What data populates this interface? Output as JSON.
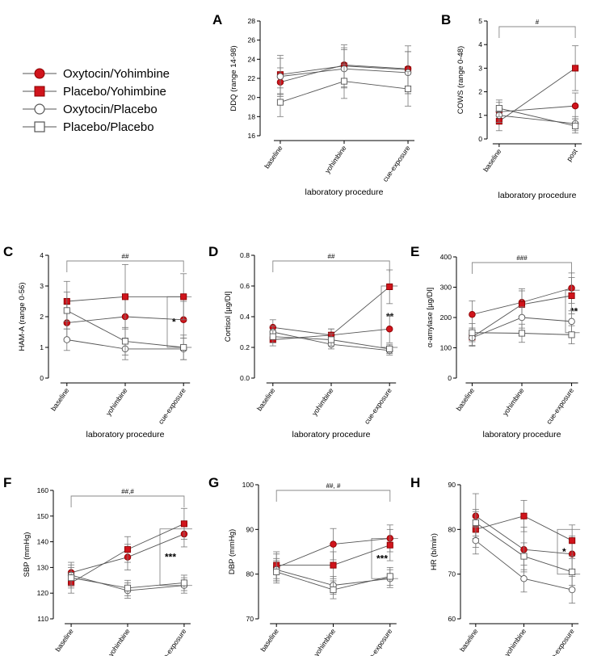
{
  "legend": [
    {
      "label": "Oxytocin/Yohimbine",
      "marker": "circle",
      "filled": true
    },
    {
      "label": "Placebo/Yohimbine",
      "marker": "square",
      "filled": true
    },
    {
      "label": "Oxytocin/Placebo",
      "marker": "circle",
      "filled": false
    },
    {
      "label": "Placebo/Placebo",
      "marker": "square",
      "filled": false
    }
  ],
  "colors": {
    "filled": "#d0141c",
    "open_fill": "#ffffff",
    "open_stroke": "#555555",
    "error": "#777777",
    "axis": "#000000"
  },
  "chart_data": [
    {
      "panel": "A",
      "type": "line",
      "ylabel": "DDQ (range 14-98)",
      "xlabel": "laboratory procedure",
      "categories": [
        "baseline",
        "yohimbine",
        "cue-exposure"
      ],
      "ylim": [
        16,
        28
      ],
      "yticks": [
        16,
        18,
        20,
        22,
        24,
        26,
        28
      ],
      "series": [
        {
          "name": "Oxytocin/Yohimbine",
          "values": [
            21.6,
            23.4,
            23.0
          ],
          "err": [
            1.5,
            1.8,
            1.8
          ]
        },
        {
          "name": "Placebo/Yohimbine",
          "values": [
            22.4,
            23.3,
            22.9
          ],
          "err": [
            2.0,
            2.2,
            2.5
          ]
        },
        {
          "name": "Oxytocin/Placebo",
          "values": [
            22.2,
            23.0,
            22.6
          ],
          "err": [
            1.9,
            2.0,
            2.2
          ]
        },
        {
          "name": "Placebo/Placebo",
          "values": [
            19.5,
            21.7,
            20.9
          ],
          "err": [
            1.5,
            1.8,
            1.8
          ]
        }
      ],
      "bracket": {
        "label": "",
        "from": 0,
        "to": 0
      },
      "stars": ""
    },
    {
      "panel": "B",
      "type": "line",
      "ylabel": "COWS (range 0-48)",
      "xlabel": "laboratory procedure",
      "categories": [
        "baseline",
        "post"
      ],
      "ylim": [
        0,
        5
      ],
      "yticks": [
        0,
        1,
        2,
        3,
        4,
        5
      ],
      "series": [
        {
          "name": "Oxytocin/Yohimbine",
          "values": [
            1.15,
            1.4
          ],
          "err": [
            0.4,
            0.55
          ]
        },
        {
          "name": "Placebo/Yohimbine",
          "values": [
            0.75,
            3.0
          ],
          "err": [
            0.4,
            0.95
          ]
        },
        {
          "name": "Oxytocin/Placebo",
          "values": [
            1.0,
            0.65
          ],
          "err": [
            0.3,
            0.3
          ]
        },
        {
          "name": "Placebo/Placebo",
          "values": [
            1.3,
            0.55
          ],
          "err": [
            0.35,
            0.3
          ]
        }
      ],
      "bracket": {
        "label": "#",
        "from": 0,
        "to": 1
      },
      "stars": ""
    },
    {
      "panel": "C",
      "type": "line",
      "ylabel": "HAM-A (range 0-56)",
      "xlabel": "laboratory procedure",
      "categories": [
        "baseline",
        "yohimbine",
        "cue-exposure"
      ],
      "ylim": [
        0,
        4
      ],
      "yticks": [
        0,
        1,
        2,
        3,
        4
      ],
      "series": [
        {
          "name": "Oxytocin/Yohimbine",
          "values": [
            1.8,
            2.0,
            1.9
          ],
          "err": [
            0.6,
            0.7,
            0.6
          ]
        },
        {
          "name": "Placebo/Yohimbine",
          "values": [
            2.5,
            2.65,
            2.65
          ],
          "err": [
            0.65,
            1.05,
            0.75
          ]
        },
        {
          "name": "Oxytocin/Placebo",
          "values": [
            1.25,
            0.95,
            0.95
          ],
          "err": [
            0.35,
            0.35,
            0.35
          ]
        },
        {
          "name": "Placebo/Placebo",
          "values": [
            2.2,
            1.2,
            1.0
          ],
          "err": [
            0.6,
            0.45,
            0.4
          ]
        }
      ],
      "bracket": {
        "label": "##",
        "from": 0,
        "to": 2
      },
      "stars": "*"
    },
    {
      "panel": "D",
      "type": "line",
      "ylabel": "Cortisol [µg/Dl]",
      "xlabel": "laboratory procedure",
      "categories": [
        "baseline",
        "yohimbine",
        "cue-exposure"
      ],
      "ylim": [
        0,
        0.8
      ],
      "yticks": [
        0.0,
        0.2,
        0.4,
        0.6,
        0.8
      ],
      "series": [
        {
          "name": "Oxytocin/Yohimbine",
          "values": [
            0.33,
            0.28,
            0.32
          ],
          "err": [
            0.05,
            0.04,
            0.09
          ]
        },
        {
          "name": "Placebo/Yohimbine",
          "values": [
            0.25,
            0.28,
            0.595
          ],
          "err": [
            0.04,
            0.04,
            0.11
          ]
        },
        {
          "name": "Oxytocin/Placebo",
          "values": [
            0.3,
            0.22,
            0.18
          ],
          "err": [
            0.04,
            0.03,
            0.03
          ]
        },
        {
          "name": "Placebo/Placebo",
          "values": [
            0.27,
            0.25,
            0.19
          ],
          "err": [
            0.04,
            0.04,
            0.03
          ]
        }
      ],
      "bracket": {
        "label": "##",
        "from": 0,
        "to": 2
      },
      "stars": "**"
    },
    {
      "panel": "E",
      "type": "line",
      "ylabel": "α-amylase [µg/Dl]",
      "xlabel": "laboratory procedure",
      "categories": [
        "baseline",
        "yohimbine",
        "cue-exposure"
      ],
      "ylim": [
        0,
        400
      ],
      "yticks": [
        0,
        100,
        200,
        300,
        400
      ],
      "series": [
        {
          "name": "Oxytocin/Yohimbine",
          "values": [
            210,
            250,
            297
          ],
          "err": [
            45,
            45,
            50
          ]
        },
        {
          "name": "Placebo/Yohimbine",
          "values": [
            135,
            243,
            272
          ],
          "err": [
            30,
            45,
            60
          ]
        },
        {
          "name": "Oxytocin/Placebo",
          "values": [
            133,
            200,
            187
          ],
          "err": [
            25,
            35,
            35
          ]
        },
        {
          "name": "Placebo/Placebo",
          "values": [
            150,
            148,
            143
          ],
          "err": [
            30,
            30,
            30
          ]
        }
      ],
      "bracket": {
        "label": "###",
        "from": 0,
        "to": 2
      },
      "stars": "**"
    },
    {
      "panel": "F",
      "type": "line",
      "ylabel": "SBP (mmHg)",
      "xlabel": "laboratory procedure",
      "categories": [
        "baseline",
        "yohimbine",
        "cue-exposure"
      ],
      "ylim": [
        110,
        160
      ],
      "yticks": [
        110,
        120,
        130,
        140,
        150,
        160
      ],
      "series": [
        {
          "name": "Oxytocin/Yohimbine",
          "values": [
            128,
            134,
            143
          ],
          "err": [
            4,
            5,
            5
          ]
        },
        {
          "name": "Placebo/Yohimbine",
          "values": [
            124,
            137,
            147
          ],
          "err": [
            4,
            5,
            6
          ]
        },
        {
          "name": "Oxytocin/Placebo",
          "values": [
            127,
            121,
            123
          ],
          "err": [
            4,
            3,
            3
          ]
        },
        {
          "name": "Placebo/Placebo",
          "values": [
            126,
            122,
            124
          ],
          "err": [
            4,
            3,
            3
          ]
        }
      ],
      "bracket": {
        "label": "##,#",
        "from": 0,
        "to": 2
      },
      "stars": "***"
    },
    {
      "panel": "G",
      "type": "line",
      "ylabel": "DBP (mmHg)",
      "xlabel": "laboratory procedure",
      "categories": [
        "baseline",
        "yohimbine",
        "cue-exposure"
      ],
      "ylim": [
        70,
        100
      ],
      "yticks": [
        70,
        80,
        90,
        100
      ],
      "series": [
        {
          "name": "Oxytocin/Yohimbine",
          "values": [
            81.5,
            86.7,
            88.0
          ],
          "err": [
            3,
            3.5,
            3
          ]
        },
        {
          "name": "Placebo/Yohimbine",
          "values": [
            82.0,
            82.0,
            86.5
          ],
          "err": [
            3,
            3,
            3.5
          ]
        },
        {
          "name": "Oxytocin/Placebo",
          "values": [
            81.0,
            77.5,
            79.0
          ],
          "err": [
            2.5,
            2,
            2
          ]
        },
        {
          "name": "Placebo/Placebo",
          "values": [
            80.5,
            76.5,
            79.5
          ],
          "err": [
            2.5,
            2,
            2
          ]
        }
      ],
      "bracket": {
        "label": "##, #",
        "from": 0,
        "to": 2
      },
      "stars": "***"
    },
    {
      "panel": "H",
      "type": "line",
      "ylabel": "HR (b/min)",
      "xlabel": "laboratory procedure",
      "categories": [
        "baseline",
        "yohimbine",
        "cue-exposure"
      ],
      "ylim": [
        60,
        90
      ],
      "yticks": [
        60,
        70,
        80,
        90
      ],
      "series": [
        {
          "name": "Oxytocin/Yohimbine",
          "values": [
            83,
            75.5,
            74.5
          ],
          "err": [
            5,
            5,
            4
          ]
        },
        {
          "name": "Placebo/Yohimbine",
          "values": [
            80,
            83,
            77.5
          ],
          "err": [
            4,
            3.5,
            3.5
          ]
        },
        {
          "name": "Oxytocin/Placebo",
          "values": [
            77.5,
            69,
            66.5
          ],
          "err": [
            3,
            3,
            3
          ]
        },
        {
          "name": "Placebo/Placebo",
          "values": [
            81.5,
            74,
            70.5
          ],
          "err": [
            3,
            3,
            3
          ]
        }
      ],
      "bracket": {
        "label": "",
        "from": 0,
        "to": 0
      },
      "stars": "*"
    }
  ]
}
